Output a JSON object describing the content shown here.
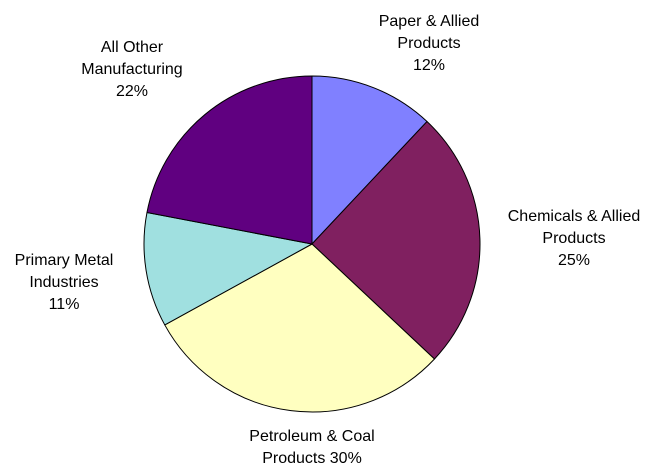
{
  "chart_data": {
    "type": "pie",
    "start": "12 o'clock",
    "direction": "clockwise",
    "slices": [
      {
        "name": "Paper & Allied Products",
        "value": 12,
        "label_lines": [
          "Paper & Allied",
          "Products",
          "12%"
        ],
        "color": "#8080ff"
      },
      {
        "name": "Chemicals & Allied Products",
        "value": 25,
        "label_lines": [
          "Chemicals & Allied",
          "Products",
          "25%"
        ],
        "color": "#802060"
      },
      {
        "name": "Petroleum & Coal Products",
        "value": 30,
        "label_lines": [
          "Petroleum & Coal",
          "Products 30%"
        ],
        "color": "#ffffc0"
      },
      {
        "name": "Primary Metal Industries",
        "value": 11,
        "label_lines": [
          "Primary Metal",
          "Industries",
          "11%"
        ],
        "color": "#a0e0e0"
      },
      {
        "name": "All Other Manufacturing",
        "value": 22,
        "label_lines": [
          "All Other",
          "Manufacturing",
          "22%"
        ],
        "color": "#600080"
      }
    ]
  }
}
